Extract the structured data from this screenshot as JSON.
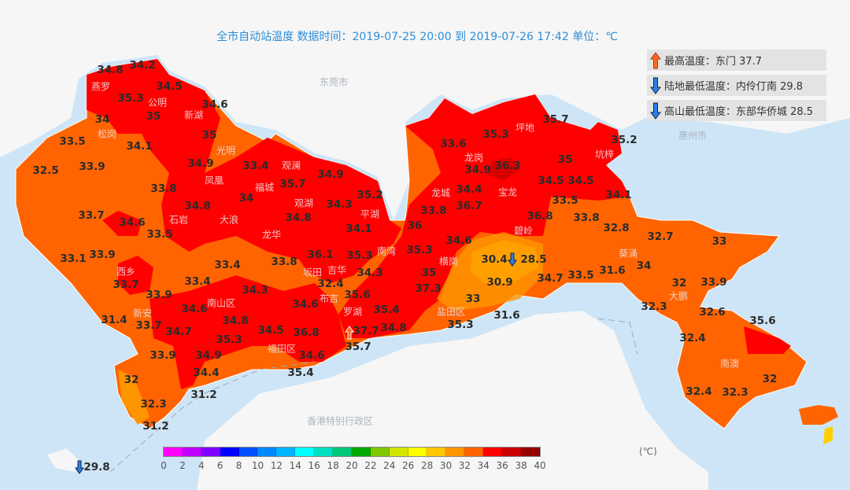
{
  "title": "全市自动站温度  数据时间：2019-07-25 20:00 到 2019-07-26 17:42  单位：℃",
  "summary": [
    {
      "icon": "up-arrow-icon",
      "text": "最高温度：东门 37.7"
    },
    {
      "icon": "down-arrow-icon",
      "text": "陆地最低温度：内伶仃南 29.8"
    },
    {
      "icon": "down-arrow-icon",
      "text": "高山最低温度：东部华侨城 28.5"
    }
  ],
  "places": [
    "东莞市",
    "燕罗",
    "公明",
    "新湖",
    "松岗",
    "光明",
    "凤凰",
    "观澜",
    "福城",
    "观湖",
    "平湖",
    "石岩",
    "大浪",
    "龙华",
    "坂田",
    "吉华",
    "南湾",
    "横岗",
    "布吉",
    "罗湖",
    "龙岗",
    "坪地",
    "龙城",
    "宝龙",
    "坑梓",
    "碧岭",
    "盐田区",
    "南山区",
    "福田区",
    "西乡",
    "新安",
    "葵涌",
    "大鹏",
    "南澳",
    "香港特别行政区",
    "惠州市"
  ],
  "stations": [
    "34.8",
    "34.2",
    "35.3",
    "34.5",
    "34.6",
    "34",
    "35",
    "35",
    "33.5",
    "34.1",
    "32.5",
    "33.9",
    "34.9",
    "33.4",
    "33.8",
    "35.7",
    "34.9",
    "35.2",
    "34",
    "34.3",
    "34.8",
    "33.7",
    "34.6",
    "34.8",
    "34.1",
    "33.5",
    "33.1",
    "33.9",
    "33.4",
    "33.8",
    "36.1",
    "35.3",
    "34.3",
    "35.3",
    "35",
    "36",
    "33.8",
    "33.6",
    "35.3",
    "35.7",
    "35.2",
    "34.9",
    "36.3",
    "35",
    "34.4",
    "36.7",
    "34.5",
    "34.5",
    "34.1",
    "33.5",
    "36.8",
    "33.8",
    "32.8",
    "34.6",
    "30.4",
    "28.5",
    "30.9",
    "33",
    "37.3",
    "34.7",
    "33.5",
    "31.6",
    "32.7",
    "33",
    "34",
    "32",
    "33.9",
    "32.3",
    "32.6",
    "35.6",
    "32.4",
    "32",
    "32.4",
    "32.3",
    "31.6",
    "35.3",
    "34.8",
    "35.4",
    "35.6",
    "32.4",
    "34.6",
    "34.3",
    "33.4",
    "33.7",
    "33.9",
    "34.6",
    "34.8",
    "34.7",
    "33.7",
    "31.4",
    "34.5",
    "36.8",
    "35.3",
    "33.9",
    "34.9",
    "34.4",
    "34.6",
    "35.4",
    "37.7",
    "35.7",
    "32",
    "32.3",
    "31.2",
    "31.2",
    "29.8"
  ],
  "colorbar": {
    "unit": "(℃)",
    "ticks": [
      "0",
      "2",
      "4",
      "6",
      "8",
      "10",
      "12",
      "14",
      "16",
      "18",
      "20",
      "22",
      "24",
      "26",
      "28",
      "30",
      "32",
      "34",
      "36",
      "38",
      "40"
    ],
    "colors": [
      "#ff00ff",
      "#c000ff",
      "#8000ff",
      "#0000ff",
      "#0050ff",
      "#0088ff",
      "#00b4ff",
      "#00ffff",
      "#00e0c0",
      "#00c878",
      "#00aa00",
      "#80c800",
      "#d2e600",
      "#ffff00",
      "#ffc800",
      "#ff9600",
      "#ff6400",
      "#ff0000",
      "#cc0000",
      "#960000"
    ]
  },
  "colors": {
    "sea": "#cde5f6",
    "land": "#f6f6f6",
    "t30_32": "#ff9600",
    "t32_34": "#ff6400",
    "t34_36": "#ff0000",
    "t36_38": "#cc0000",
    "t28_30": "#ffc800"
  }
}
